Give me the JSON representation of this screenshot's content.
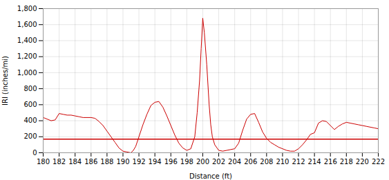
{
  "chart_data": {
    "type": "line",
    "xlabel": "Distance (ft)",
    "ylabel": "IRI (inches/mi)",
    "color": "#cc0000",
    "threshold": 170,
    "xlim": [
      180,
      222
    ],
    "ylim": [
      0,
      1800
    ],
    "xticks": [
      180,
      182,
      184,
      186,
      188,
      190,
      192,
      194,
      196,
      198,
      200,
      202,
      204,
      206,
      208,
      210,
      212,
      214,
      216,
      218,
      220,
      222
    ],
    "yticks": [
      0,
      200,
      400,
      600,
      800,
      {
        "value": 1000,
        "label": "1,000"
      },
      {
        "value": 1200,
        "label": "1,200"
      },
      {
        "value": 1400,
        "label": "1,400"
      },
      {
        "value": 1600,
        "label": "1,600"
      },
      {
        "value": 1800,
        "label": "1,800"
      }
    ],
    "grid": true,
    "x": [
      180,
      181,
      181.5,
      182,
      182.5,
      183,
      183.5,
      184,
      184.5,
      185,
      185.5,
      186,
      186.5,
      187,
      187.5,
      188,
      188.5,
      189,
      189.5,
      190,
      190.5,
      191,
      191.3,
      191.6,
      192,
      192.5,
      193,
      193.5,
      194,
      194.5,
      195,
      195.5,
      196,
      196.5,
      197,
      197.5,
      198,
      198.5,
      199,
      199.3,
      199.6,
      199.8,
      200.0,
      200.2,
      200.5,
      200.8,
      201.0,
      201.2,
      201.5,
      202,
      202.5,
      203,
      203.5,
      204,
      204.5,
      205,
      205.5,
      206,
      206.5,
      207,
      207.5,
      208,
      208.5,
      209,
      209.5,
      210,
      210.5,
      211,
      211.5,
      212,
      212.5,
      213,
      213.5,
      214,
      214.5,
      215,
      215.5,
      216,
      216.5,
      217,
      217.5,
      218,
      218.5,
      219,
      219.5,
      220,
      220.5,
      221,
      221.5,
      222
    ],
    "values": [
      440,
      400,
      410,
      490,
      480,
      470,
      470,
      460,
      450,
      440,
      440,
      440,
      430,
      390,
      340,
      270,
      200,
      130,
      60,
      20,
      10,
      0,
      30,
      80,
      200,
      350,
      480,
      590,
      630,
      640,
      570,
      460,
      340,
      220,
      120,
      60,
      30,
      50,
      200,
      500,
      900,
      1300,
      1680,
      1500,
      1100,
      600,
      350,
      200,
      100,
      30,
      20,
      30,
      40,
      50,
      120,
      280,
      420,
      480,
      490,
      380,
      260,
      180,
      130,
      100,
      70,
      50,
      30,
      20,
      20,
      50,
      100,
      160,
      230,
      250,
      370,
      400,
      390,
      340,
      290,
      330,
      360,
      380,
      370,
      360,
      350,
      340,
      330,
      320,
      310,
      300
    ]
  }
}
